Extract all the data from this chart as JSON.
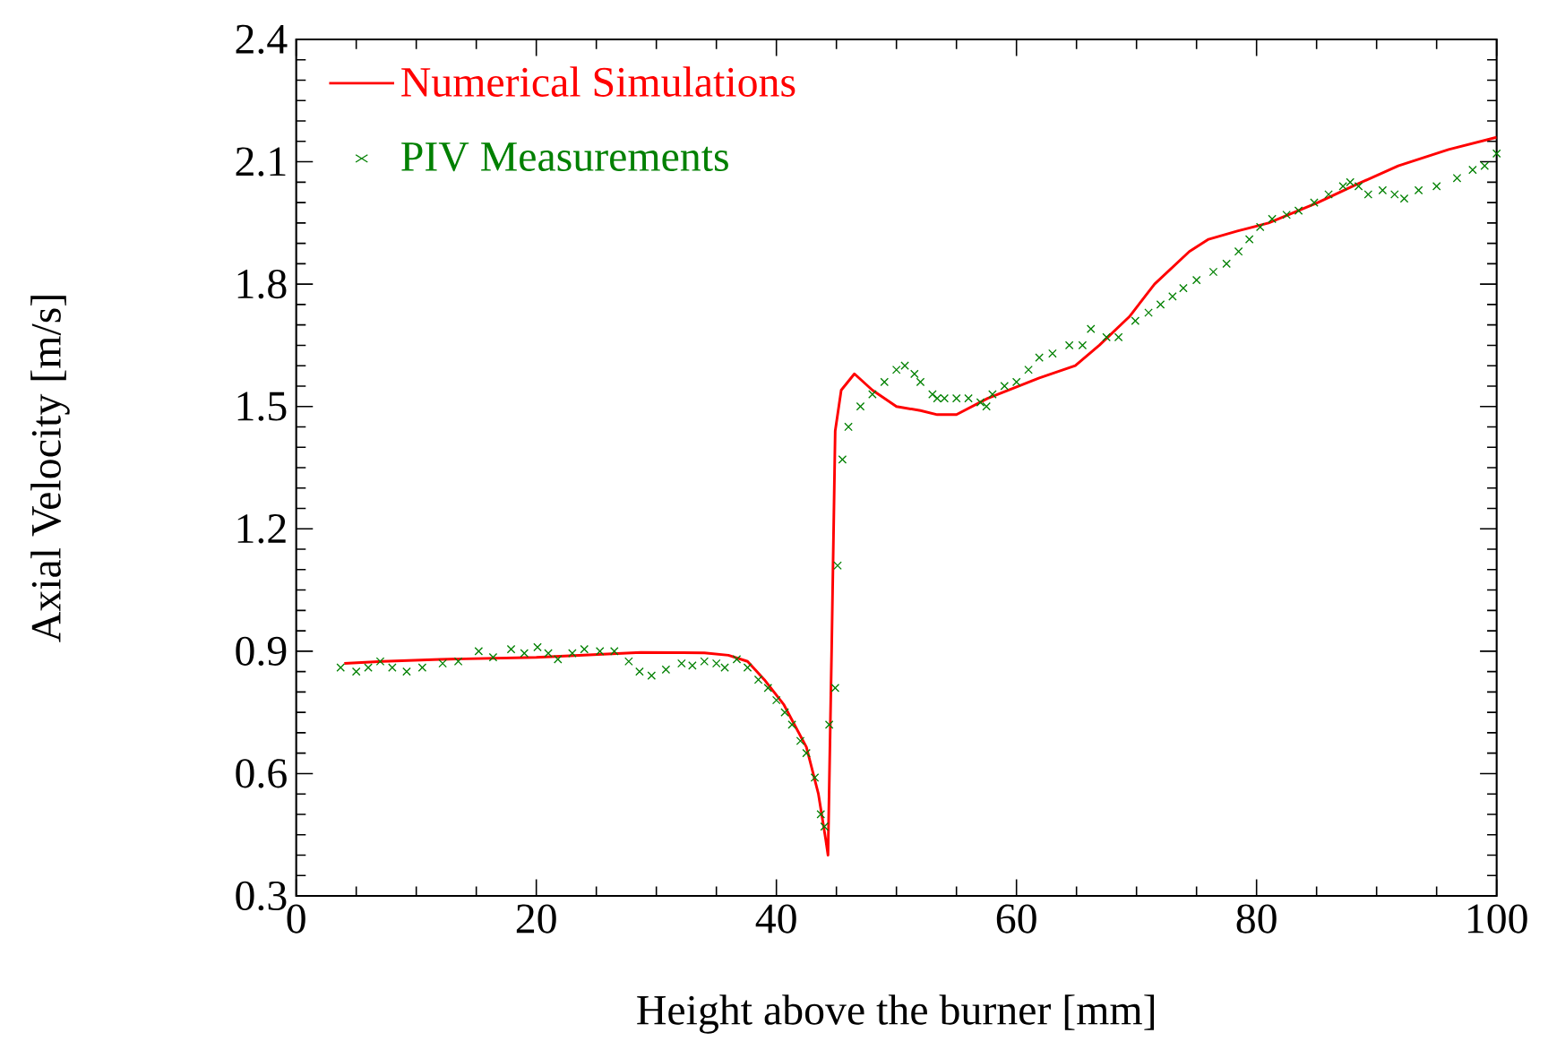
{
  "chart_data": {
    "type": "line",
    "xlabel": "Height above the burner [mm]",
    "ylabel": "Axial Velocity [m/s]",
    "xlim": [
      0,
      100
    ],
    "ylim": [
      0.3,
      2.4
    ],
    "xticks": [
      0,
      20,
      40,
      60,
      80,
      100
    ],
    "yticks": [
      0.3,
      0.6,
      0.9,
      1.2,
      1.5,
      1.8,
      2.1,
      2.4
    ],
    "grid": false,
    "legend": "top left",
    "series": [
      {
        "name": "Numerical Simulations",
        "color": "#ff0000",
        "marker": "none",
        "x": [
          4,
          7.2,
          12,
          20,
          28.7,
          34,
          36,
          37.6,
          39,
          40.6,
          41.5,
          42.5,
          43.5,
          44.1,
          44.3,
          44.6,
          44.9,
          45.4,
          46.5,
          48,
          50,
          52,
          53.4,
          55,
          57.6,
          61.9,
          64.9,
          66.9,
          69.4,
          71.5,
          74.4,
          76,
          78.4,
          81,
          85.1,
          88,
          91.8,
          96,
          100
        ],
        "values": [
          0.87,
          0.875,
          0.88,
          0.885,
          0.897,
          0.896,
          0.89,
          0.875,
          0.83,
          0.77,
          0.72,
          0.665,
          0.55,
          0.44,
          0.4,
          0.9,
          1.44,
          1.54,
          1.58,
          1.54,
          1.5,
          1.49,
          1.48,
          1.48,
          1.52,
          1.57,
          1.6,
          1.65,
          1.72,
          1.8,
          1.88,
          1.91,
          1.93,
          1.95,
          2.0,
          2.04,
          2.09,
          2.13,
          2.16
        ]
      },
      {
        "name": "PIV Measurements",
        "type": "scatter",
        "color": "#008000",
        "marker": "cross",
        "x": [
          3.7,
          5,
          6,
          7,
          8,
          9.2,
          10.5,
          12.2,
          13.5,
          15.2,
          16.4,
          17.9,
          19,
          20.1,
          21,
          21.8,
          23,
          24,
          25.3,
          26.5,
          27.7,
          28.6,
          29.6,
          30.8,
          32.1,
          33,
          34,
          35,
          35.7,
          36.7,
          37.6,
          38.5,
          39.3,
          40,
          40.7,
          41.3,
          42,
          42.5,
          43.2,
          43.7,
          44,
          44.4,
          44.9,
          45.1,
          45.5,
          46,
          47,
          48,
          49,
          50,
          50.7,
          51.5,
          52,
          53,
          53.4,
          54,
          55,
          56,
          57,
          57.5,
          58,
          59,
          60,
          61,
          61.9,
          63,
          64.4,
          65.5,
          66.2,
          67.5,
          68.5,
          69.9,
          71,
          72,
          73,
          73.9,
          75,
          76.4,
          77.5,
          78.5,
          79.4,
          80.3,
          81.3,
          82.5,
          83.5,
          84.8,
          86,
          87.2,
          87.8,
          88.5,
          89.3,
          90.5,
          91.5,
          92.3,
          93.5,
          95,
          96.7,
          98,
          99,
          100
        ],
        "values": [
          0.86,
          0.85,
          0.86,
          0.875,
          0.86,
          0.85,
          0.86,
          0.87,
          0.875,
          0.9,
          0.885,
          0.905,
          0.895,
          0.91,
          0.895,
          0.88,
          0.895,
          0.905,
          0.9,
          0.9,
          0.875,
          0.85,
          0.84,
          0.855,
          0.87,
          0.865,
          0.875,
          0.87,
          0.86,
          0.88,
          0.86,
          0.83,
          0.81,
          0.78,
          0.75,
          0.72,
          0.68,
          0.65,
          0.59,
          0.5,
          0.47,
          0.72,
          0.81,
          1.11,
          1.37,
          1.45,
          1.5,
          1.53,
          1.56,
          1.59,
          1.6,
          1.58,
          1.56,
          1.53,
          1.52,
          1.52,
          1.52,
          1.52,
          1.51,
          1.5,
          1.53,
          1.55,
          1.56,
          1.59,
          1.62,
          1.63,
          1.65,
          1.65,
          1.69,
          1.67,
          1.67,
          1.71,
          1.73,
          1.75,
          1.77,
          1.79,
          1.81,
          1.83,
          1.85,
          1.88,
          1.91,
          1.94,
          1.96,
          1.97,
          1.98,
          2.0,
          2.02,
          2.04,
          2.05,
          2.04,
          2.02,
          2.03,
          2.02,
          2.01,
          2.03,
          2.04,
          2.06,
          2.08,
          2.09,
          2.12
        ]
      }
    ]
  }
}
